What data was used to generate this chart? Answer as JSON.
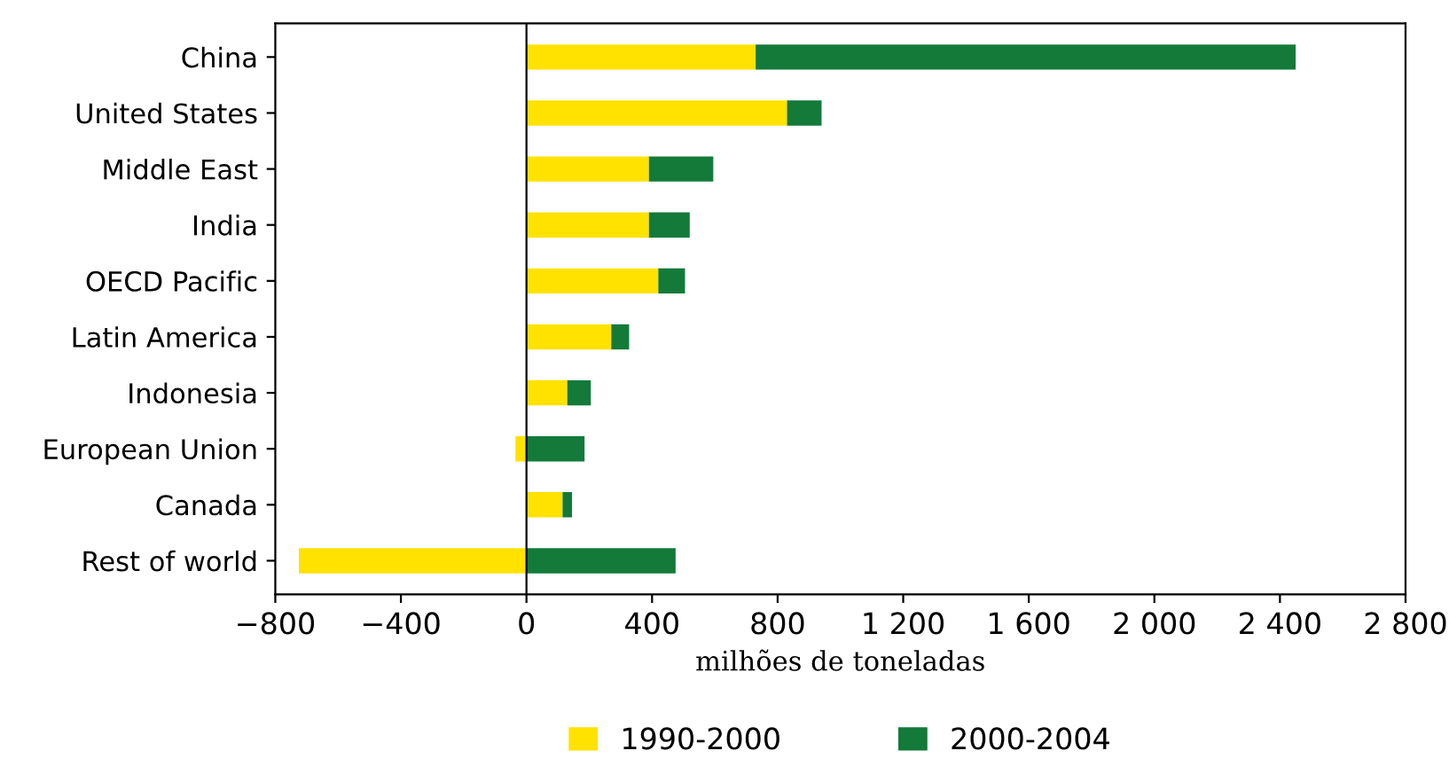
{
  "chart_data": {
    "type": "bar",
    "orientation": "horizontal",
    "stacked": true,
    "categories": [
      "China",
      "United States",
      "Middle East",
      "India",
      "OECD Pacific",
      "Latin America",
      "Indonesia",
      "European Union",
      "Canada",
      "Rest of world"
    ],
    "series": [
      {
        "name": "1990-2000",
        "color": "#ffe200",
        "values": [
          730,
          830,
          390,
          390,
          420,
          270,
          130,
          -35,
          115,
          -725
        ]
      },
      {
        "name": "2000-2004",
        "color": "#137a3a",
        "values": [
          1720,
          110,
          205,
          130,
          85,
          57,
          75,
          185,
          30,
          475
        ]
      }
    ],
    "xlabel": "milhões de toneladas",
    "xlim": [
      -800,
      2800
    ],
    "xticks": [
      {
        "value": -800,
        "label": "−800"
      },
      {
        "value": -400,
        "label": "−400"
      },
      0,
      400,
      800,
      {
        "value": 1200,
        "label": "1 200"
      },
      {
        "value": 1600,
        "label": "1 600"
      },
      {
        "value": 2000,
        "label": "2 000"
      },
      {
        "value": 2400,
        "label": "2 400"
      },
      {
        "value": 2800,
        "label": "2 800"
      }
    ],
    "ref_lines": [
      {
        "axis": "x",
        "value": 0,
        "label": null,
        "color": "#000000"
      }
    ],
    "grid": false,
    "legend": "bottom"
  }
}
